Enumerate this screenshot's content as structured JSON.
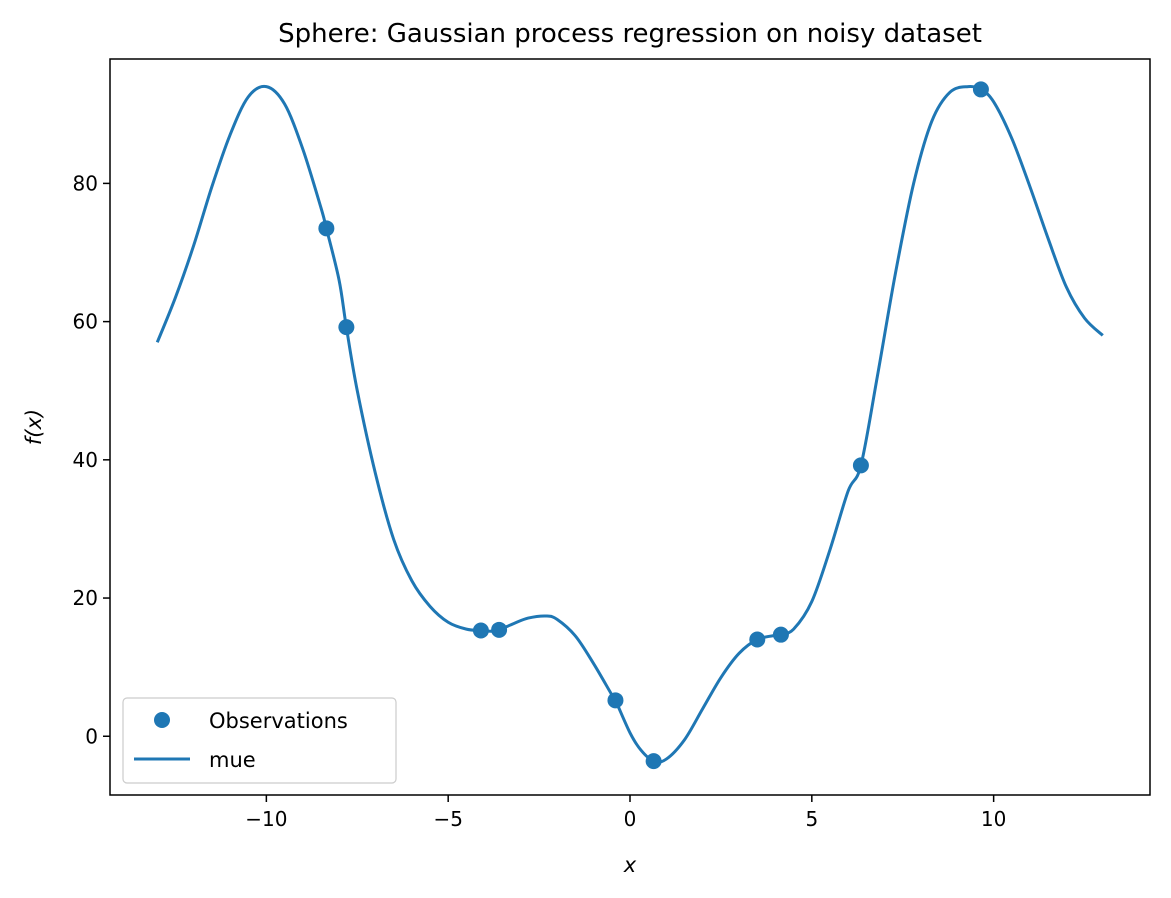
{
  "chart_data": {
    "type": "line",
    "title": "Sphere: Gaussian process regression on noisy dataset",
    "xlabel": "x",
    "ylabel": "f(x)",
    "xlim": [
      -14.3,
      14.3
    ],
    "ylim": [
      -8.5,
      98
    ],
    "xticks": [
      -10,
      -5,
      0,
      5,
      10
    ],
    "yticks": [
      0,
      20,
      40,
      60,
      80
    ],
    "xtick_labels": [
      "−10",
      "−5",
      "0",
      "5",
      "10"
    ],
    "ytick_labels": [
      "0",
      "20",
      "40",
      "60",
      "80"
    ],
    "grid": false,
    "legend_position": "lower-left",
    "color": "#1f77b4",
    "series": [
      {
        "name": "Observations",
        "type": "scatter",
        "x": [
          -8.35,
          -7.8,
          -4.1,
          -3.6,
          -0.4,
          0.65,
          3.5,
          4.15,
          6.35,
          9.65
        ],
        "y": [
          73.5,
          59.2,
          15.3,
          15.4,
          5.2,
          -3.6,
          14.0,
          14.7,
          39.2,
          93.6
        ]
      },
      {
        "name": "mue",
        "type": "line",
        "x": [
          -13.0,
          -12.5,
          -12.0,
          -11.5,
          -11.0,
          -10.5,
          -10.0,
          -9.5,
          -9.0,
          -8.5,
          -8.35,
          -8.0,
          -7.8,
          -7.5,
          -7.0,
          -6.5,
          -6.0,
          -5.5,
          -5.0,
          -4.5,
          -4.1,
          -3.8,
          -3.6,
          -3.2,
          -2.8,
          -2.3,
          -2.0,
          -1.5,
          -1.0,
          -0.5,
          -0.4,
          0.0,
          0.3,
          0.65,
          1.0,
          1.5,
          2.0,
          2.5,
          3.0,
          3.5,
          4.0,
          4.15,
          4.5,
          5.0,
          5.5,
          6.0,
          6.35,
          6.8,
          7.3,
          7.8,
          8.3,
          8.8,
          9.3,
          9.65,
          10.0,
          10.5,
          11.0,
          11.5,
          12.0,
          12.5,
          13.0
        ],
        "y": [
          57.0,
          63.5,
          71.0,
          79.5,
          87.0,
          92.5,
          94.0,
          91.5,
          85.0,
          76.5,
          73.5,
          66.0,
          59.2,
          50.0,
          38.0,
          28.5,
          22.5,
          18.8,
          16.5,
          15.5,
          15.3,
          15.2,
          15.4,
          16.3,
          17.1,
          17.4,
          16.9,
          14.5,
          10.5,
          6.0,
          5.2,
          0.5,
          -2.0,
          -3.6,
          -3.3,
          -0.5,
          4.0,
          8.5,
          12.0,
          14.0,
          14.6,
          14.7,
          15.5,
          19.5,
          27.0,
          35.5,
          39.2,
          52.0,
          67.0,
          80.0,
          89.0,
          93.2,
          94.0,
          93.6,
          91.8,
          86.5,
          79.5,
          72.0,
          65.0,
          60.5,
          58.0
        ]
      }
    ]
  }
}
